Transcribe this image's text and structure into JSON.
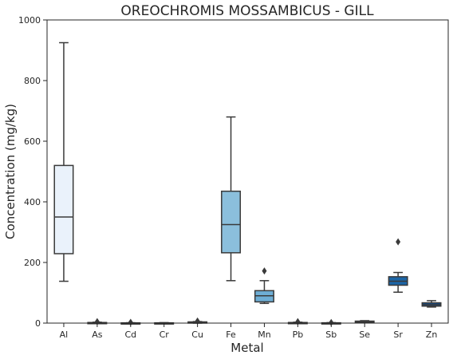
{
  "chart_data": {
    "type": "box",
    "title": "OREOCHROMIS MOSSAMBICUS - GILL",
    "xlabel": "Metal",
    "ylabel": "Concentration (mg/kg)",
    "ylim": [
      0,
      1000
    ],
    "yticks": [
      "0",
      "200",
      "400",
      "600",
      "800",
      "1000"
    ],
    "grid": false,
    "categories": [
      "Al",
      "As",
      "Cd",
      "Cr",
      "Cu",
      "Fe",
      "Mn",
      "Pb",
      "Sb",
      "Se",
      "Sr",
      "Zn"
    ],
    "boxes": [
      {
        "category": "Al",
        "whisker_low": 138,
        "q1": 229,
        "median": 350,
        "q3": 520,
        "whisker_high": 925,
        "outliers": [],
        "color": "#eaf2fb"
      },
      {
        "category": "As",
        "whisker_low": 0,
        "q1": 0.5,
        "median": 1,
        "q3": 2,
        "whisker_high": 3,
        "outliers": [
          5
        ],
        "color": "#dbe9f6"
      },
      {
        "category": "Cd",
        "whisker_low": 0,
        "q1": 0.2,
        "median": 0.4,
        "q3": 0.8,
        "whisker_high": 1.2,
        "outliers": [
          2.5
        ],
        "color": "#cde0f1"
      },
      {
        "category": "Cr",
        "whisker_low": 0,
        "q1": 0.3,
        "median": 0.5,
        "q3": 0.9,
        "whisker_high": 1.5,
        "outliers": [],
        "color": "#bdd7ec"
      },
      {
        "category": "Cu",
        "whisker_low": 0,
        "q1": 1.5,
        "median": 2.5,
        "q3": 4,
        "whisker_high": 5,
        "outliers": [
          7
        ],
        "color": "#a8cee4"
      },
      {
        "category": "Fe",
        "whisker_low": 140,
        "q1": 232,
        "median": 325,
        "q3": 435,
        "whisker_high": 680,
        "outliers": [],
        "color": "#8bbfdc"
      },
      {
        "category": "Mn",
        "whisker_low": 65,
        "q1": 70,
        "median": 90,
        "q3": 107,
        "whisker_high": 140,
        "outliers": [
          172
        ],
        "color": "#6eaed5"
      },
      {
        "category": "Pb",
        "whisker_low": 0,
        "q1": 0.5,
        "median": 1,
        "q3": 2,
        "whisker_high": 3,
        "outliers": [
          5
        ],
        "color": "#539ccb"
      },
      {
        "category": "Sb",
        "whisker_low": 0,
        "q1": 0.2,
        "median": 0.5,
        "q3": 1,
        "whisker_high": 1.5,
        "outliers": [
          2
        ],
        "color": "#3d8bc1"
      },
      {
        "category": "Se",
        "whisker_low": 2,
        "q1": 3,
        "median": 5,
        "q3": 6.5,
        "whisker_high": 8,
        "outliers": [],
        "color": "#2b79b5"
      },
      {
        "category": "Sr",
        "whisker_low": 102,
        "q1": 125,
        "median": 138,
        "q3": 153,
        "whisker_high": 167,
        "outliers": [
          268
        ],
        "color": "#1c65a6"
      },
      {
        "category": "Zn",
        "whisker_low": 53,
        "q1": 56,
        "median": 61,
        "q3": 67,
        "whisker_high": 74,
        "outliers": [],
        "color": "#0f4f93"
      }
    ]
  }
}
